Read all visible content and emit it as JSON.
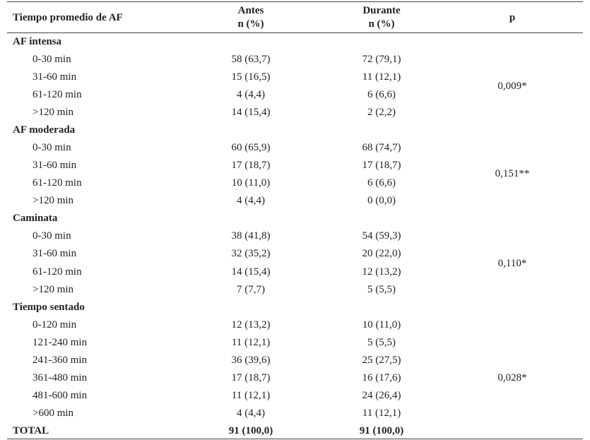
{
  "header": {
    "col1": "Tiempo promedio de AF",
    "col2_line1": "Antes",
    "col2_line2": "n (%)",
    "col3_line1": "Durante",
    "col3_line2": "n (%)",
    "col4": "p"
  },
  "sections": [
    {
      "title": "AF intensa",
      "p": "0,009*",
      "rows": [
        {
          "label": "0-30 min",
          "antes": "58 (63,7)",
          "durante": "72 (79,1)"
        },
        {
          "label": "31-60 min",
          "antes": "15 (16,5)",
          "durante": "11 (12,1)"
        },
        {
          "label": "61-120 min",
          "antes": "4 (4,4)",
          "durante": "6 (6,6)"
        },
        {
          "label": ">120 min",
          "antes": "14 (15,4)",
          "durante": "2 (2,2)"
        }
      ]
    },
    {
      "title": "AF moderada",
      "p": "0,151**",
      "rows": [
        {
          "label": "0-30 min",
          "antes": "60 (65,9)",
          "durante": "68 (74,7)"
        },
        {
          "label": "31-60 min",
          "antes": "17 (18,7)",
          "durante": "17 (18,7)"
        },
        {
          "label": "61-120 min",
          "antes": "10 (11,0)",
          "durante": "6 (6,6)"
        },
        {
          "label": ">120 min",
          "antes": "4 (4,4)",
          "durante": "0 (0,0)"
        }
      ]
    },
    {
      "title": "Caminata",
      "p": "0,110*",
      "rows": [
        {
          "label": "0-30 min",
          "antes": "38 (41,8)",
          "durante": "54 (59,3)"
        },
        {
          "label": "31-60 min",
          "antes": "32 (35,2)",
          "durante": "20 (22,0)"
        },
        {
          "label": "61-120 min",
          "antes": "14 (15,4)",
          "durante": "12 (13,2)"
        },
        {
          "label": ">120 min",
          "antes": "7 (7,7)",
          "durante": "5 (5,5)"
        }
      ]
    },
    {
      "title": "Tiempo sentado",
      "p": "0,028*",
      "rows": [
        {
          "label": "0-120 min",
          "antes": "12 (13,2)",
          "durante": "10 (11,0)"
        },
        {
          "label": "121-240 min",
          "antes": "11 (12,1)",
          "durante": "5 (5,5)"
        },
        {
          "label": "241-360 min",
          "antes": "36 (39,6)",
          "durante": "25 (27,5)"
        },
        {
          "label": "361-480 min",
          "antes": "17 (18,7)",
          "durante": "16 (17,6)"
        },
        {
          "label": "481-600 min",
          "antes": "11 (12,1)",
          "durante": "24 (26,4)"
        },
        {
          "label": ">600 min",
          "antes": "4 (4,4)",
          "durante": "11 (12,1)"
        }
      ]
    }
  ],
  "total": {
    "label": "TOTAL",
    "antes": "91 (100,0)",
    "durante": "91 (100,0)"
  }
}
